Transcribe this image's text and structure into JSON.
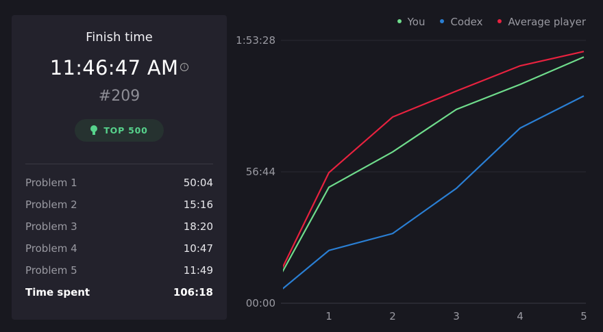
{
  "summary": {
    "title": "Finish time",
    "finish_time": "11:46:47 AM",
    "info_icon": "info-circle-icon",
    "rank": "#209",
    "badge": {
      "label": "TOP 500",
      "icon": "medal-icon",
      "color": "#57d38c"
    },
    "rows": [
      {
        "label": "Problem 1",
        "value": "50:04"
      },
      {
        "label": "Problem 2",
        "value": "15:16"
      },
      {
        "label": "Problem 3",
        "value": "18:20"
      },
      {
        "label": "Problem 4",
        "value": "10:47"
      },
      {
        "label": "Problem 5",
        "value": "11:49"
      }
    ],
    "total": {
      "label": "Time spent",
      "value": "106:18"
    }
  },
  "chart_data": {
    "type": "line",
    "x": [
      0,
      1,
      2,
      3,
      4,
      5
    ],
    "xticks": [
      "1",
      "2",
      "3",
      "4",
      "5"
    ],
    "xlim": [
      0.28,
      5
    ],
    "ylim_minutes": [
      0,
      113.47
    ],
    "yticks": [
      {
        "label": "00:00",
        "minutes": 0
      },
      {
        "label": "56:44",
        "minutes": 56.73
      },
      {
        "label": "1:53:28",
        "minutes": 113.47
      }
    ],
    "grid": "horizontal",
    "legend": "top-right",
    "series": [
      {
        "name": "You",
        "color": "#6fdc8c",
        "values": [
          0,
          50.07,
          65.33,
          83.67,
          94.45,
          106.3
        ]
      },
      {
        "name": "Codex",
        "color": "#2a7fd4",
        "values": [
          0,
          22.8,
          30.1,
          49.6,
          75.6,
          89.5
        ]
      },
      {
        "name": "Average player",
        "color": "#e8223f",
        "values": [
          0,
          56.4,
          80.4,
          91.6,
          102.5,
          108.7
        ]
      }
    ]
  }
}
